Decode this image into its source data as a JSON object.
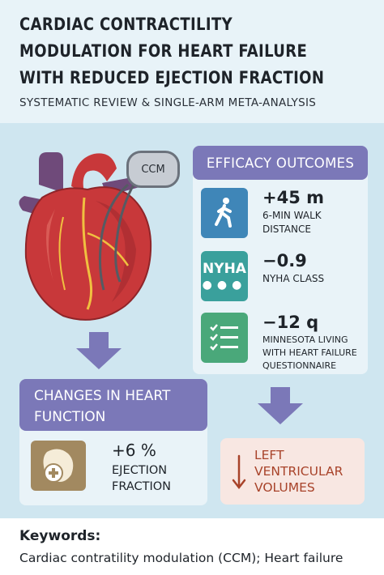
{
  "header": {
    "title": "CARDIAC CONTRACTILITY MODULATION FOR HEART FAILURE WITH REDUCED EJECTION FRACTION",
    "subtitle": "SYSTEMATIC REVIEW & SINGLE-ARM META-ANALYSIS"
  },
  "device": {
    "label": "CCM"
  },
  "efficacy": {
    "heading": "EFFICACY OUTCOMES",
    "rows": [
      {
        "icon": "walking-person-icon",
        "icon_color": "#3f86b8",
        "value": "+45 m",
        "label": "6-MIN WALK DISTANCE"
      },
      {
        "icon": "nyha-icon",
        "icon_text": "NYHA",
        "icon_color": "#3aa09c",
        "value": "−0.9",
        "label": "NYHA CLASS"
      },
      {
        "icon": "checklist-icon",
        "icon_color": "#4aa87a",
        "value": "−12 q",
        "label": "MINNESOTA LIVING WITH HEART FAILURE QUESTIONNAIRE"
      }
    ]
  },
  "changes": {
    "heading": "CHANGES IN HEART FUNCTION",
    "value": "+6 %",
    "label": "EJECTION FRACTION"
  },
  "lv": {
    "label": "LEFT VENTRICULAR VOLUMES"
  },
  "keywords": {
    "title": "Keywords:",
    "text": "Cardiac contratility modulation (CCM); Heart failure"
  },
  "colors": {
    "accent": "#7b78b8",
    "heart": "#c8383a",
    "lv_text": "#a8432a"
  }
}
